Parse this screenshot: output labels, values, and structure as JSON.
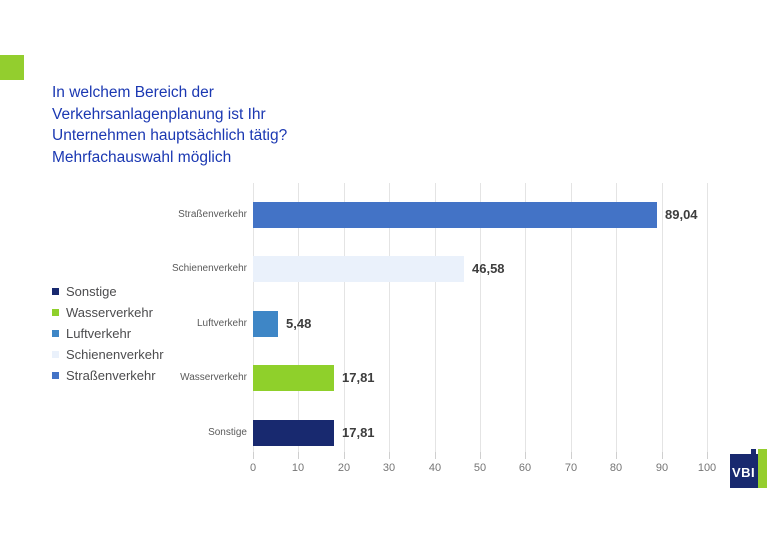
{
  "title": {
    "text": "In welchem Bereich der\nVerkehrsanlagenplanung ist Ihr\nUnternehmen hauptsächlich tätig?\nMehrfachauswahl möglich",
    "color": "#1B38B2"
  },
  "accent_square_color": "#93CE2E",
  "legend": {
    "position": "left",
    "items": [
      {
        "label": "Sonstige",
        "color": "#18296F"
      },
      {
        "label": "Wasserverkehr",
        "color": "#8FD02B"
      },
      {
        "label": "Luftverkehr",
        "color": "#3E86C6"
      },
      {
        "label": "Schienenverkehr",
        "color": "#EAF1FB"
      },
      {
        "label": "Straßenverkehr",
        "color": "#4373C6"
      }
    ]
  },
  "chart_data": {
    "type": "bar",
    "orientation": "horizontal",
    "title": "In welchem Bereich der Verkehrsanlagenplanung ist Ihr Unternehmen hauptsächlich tätig? Mehrfachauswahl möglich",
    "categories": [
      "Straßenverkehr",
      "Schienenverkehr",
      "Luftverkehr",
      "Wasserverkehr",
      "Sonstige"
    ],
    "values": [
      89.04,
      46.58,
      5.48,
      17.81,
      17.81
    ],
    "value_labels": [
      "89,04",
      "46,58",
      "5,48",
      "17,81",
      "17,81"
    ],
    "bar_colors": [
      "#4373C6",
      "#EAF1FB",
      "#3E86C6",
      "#8FD02B",
      "#18296F"
    ],
    "xlim": [
      0,
      100
    ],
    "x_ticks": [
      0,
      10,
      20,
      30,
      40,
      50,
      60,
      70,
      80,
      90,
      100
    ],
    "grid": true,
    "legend_position": "left",
    "gridline_color": "#E4E4E4"
  },
  "logo": {
    "text": "VBI",
    "navy": "#18296F",
    "green": "#95CE2E"
  }
}
